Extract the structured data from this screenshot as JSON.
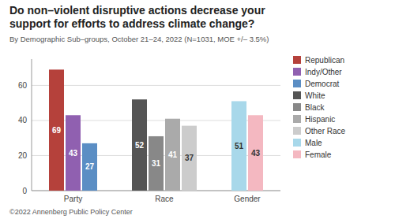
{
  "chart_data": {
    "type": "bar",
    "title": "Do non–violent disruptive actions decrease your\nsupport for efforts to address climate change?",
    "subtitle": "By Demographic Sub–groups, October 21–24, 2022 (N=1031, MOE +/– 3.5%)",
    "footer": "©2022 Annenberg Public Policy Center",
    "categories": [
      "Party",
      "Race",
      "Gender"
    ],
    "series": [
      {
        "name": "Republican",
        "color": "#b5413b",
        "values": [
          69,
          null,
          null
        ]
      },
      {
        "name": "Indy/Other",
        "color": "#9060b0",
        "values": [
          43,
          null,
          null
        ]
      },
      {
        "name": "Democrat",
        "color": "#5b8ec4",
        "values": [
          27,
          null,
          null
        ]
      },
      {
        "name": "White",
        "color": "#555555",
        "values": [
          null,
          52,
          null
        ]
      },
      {
        "name": "Black",
        "color": "#888888",
        "values": [
          null,
          31,
          null
        ]
      },
      {
        "name": "Hispanic",
        "color": "#aaaaaa",
        "values": [
          null,
          41,
          null
        ]
      },
      {
        "name": "Other Race",
        "color": "#cccccc",
        "values": [
          null,
          37,
          null
        ]
      },
      {
        "name": "Male",
        "color": "#a8d8ea",
        "values": [
          null,
          null,
          51
        ]
      },
      {
        "name": "Female",
        "color": "#f4b8c1",
        "values": [
          null,
          null,
          43
        ]
      }
    ],
    "ylim": [
      0,
      75
    ],
    "yticks": [
      0,
      20,
      40,
      60
    ],
    "grid": true,
    "legend": "right",
    "data_labels": true
  }
}
